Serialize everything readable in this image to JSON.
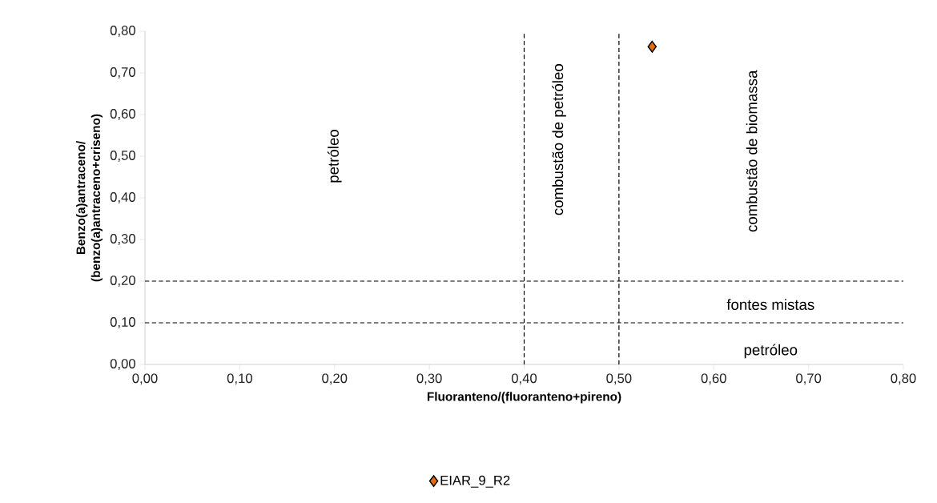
{
  "chart_data": {
    "type": "scatter",
    "xlabel": "Fluoranteno/(fluoranteno+pireno)",
    "ylabel": "Benzo(a)antraceno/\n(benzo(a)antraceno+criseno)",
    "series": [
      {
        "name": "EIAR_9_R2",
        "color": "#e46c0a",
        "x": [
          0.535
        ],
        "values": [
          0.763
        ]
      }
    ],
    "xlim": [
      0,
      0.8
    ],
    "ylim": [
      0,
      0.8
    ],
    "xticks": [
      {
        "value": 0,
        "label": "0,00"
      },
      {
        "value": 0.1,
        "label": "0,10"
      },
      {
        "value": 0.2,
        "label": "0,20"
      },
      {
        "value": 0.3,
        "label": "0,30"
      },
      {
        "value": 0.4,
        "label": "0,40"
      },
      {
        "value": 0.5,
        "label": "0,50"
      },
      {
        "value": 0.6,
        "label": "0,60"
      },
      {
        "value": 0.7,
        "label": "0,70"
      },
      {
        "value": 0.8,
        "label": "0,80"
      }
    ],
    "yticks": [
      {
        "value": 0,
        "label": "0,00"
      },
      {
        "value": 0.1,
        "label": "0,10"
      },
      {
        "value": 0.2,
        "label": "0,20"
      },
      {
        "value": 0.3,
        "label": "0,30"
      },
      {
        "value": 0.4,
        "label": "0,40"
      },
      {
        "value": 0.5,
        "label": "0,50"
      },
      {
        "value": 0.6,
        "label": "0,60"
      },
      {
        "value": 0.7,
        "label": "0,70"
      },
      {
        "value": 0.8,
        "label": "0,80"
      }
    ],
    "ref_lines": [
      {
        "axis": "x",
        "value": 0.4,
        "color": "#000000",
        "line_style": "dashed"
      },
      {
        "axis": "x",
        "value": 0.5,
        "color": "#000000",
        "line_style": "dashed"
      },
      {
        "axis": "y",
        "value": 0.2,
        "color": "#000000",
        "line_style": "dashed"
      },
      {
        "axis": "y",
        "value": 0.1,
        "color": "#000000",
        "line_style": "dashed"
      }
    ],
    "annotations": [
      "petróleo",
      "combustão de petróleo",
      "combustão de biomassa",
      "fontes mistas",
      "petróleo"
    ],
    "marker": "diamond",
    "grid": false,
    "legend": "bottom"
  }
}
